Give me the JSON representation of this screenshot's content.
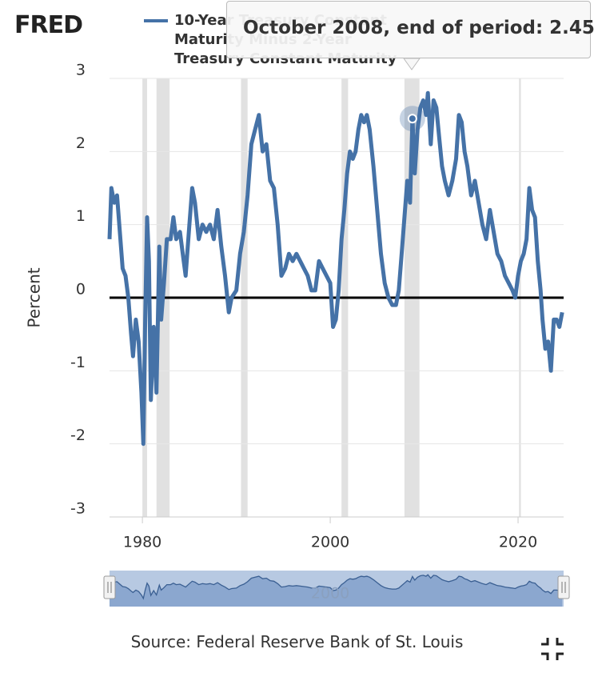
{
  "logo": "FRED",
  "chart_data": {
    "type": "line",
    "series": [
      {
        "name": "10-Year Treasury Constant Maturity Minus 2-Year Treasury Constant Maturity",
        "color": "#4572a7",
        "x": [
          1976.5,
          1976.7,
          1977.0,
          1977.3,
          1977.6,
          1977.9,
          1978.2,
          1978.5,
          1978.8,
          1979.0,
          1979.3,
          1979.6,
          1979.9,
          1980.1,
          1980.3,
          1980.5,
          1980.7,
          1980.9,
          1981.2,
          1981.5,
          1981.8,
          1982.0,
          1982.3,
          1982.6,
          1983.0,
          1983.3,
          1983.6,
          1984.0,
          1984.3,
          1984.6,
          1985.0,
          1985.3,
          1985.6,
          1986.0,
          1986.4,
          1986.8,
          1987.2,
          1987.6,
          1988.0,
          1988.4,
          1988.8,
          1989.2,
          1989.5,
          1990.0,
          1990.4,
          1990.8,
          1991.2,
          1991.6,
          1992.0,
          1992.4,
          1992.8,
          1993.2,
          1993.6,
          1994.0,
          1994.4,
          1994.8,
          1995.2,
          1995.6,
          1996.0,
          1996.4,
          1996.8,
          1997.2,
          1997.6,
          1998.0,
          1998.4,
          1998.8,
          1999.2,
          1999.6,
          2000.0,
          2000.3,
          2000.6,
          2000.9,
          2001.2,
          2001.5,
          2001.8,
          2002.1,
          2002.4,
          2002.7,
          2003.0,
          2003.3,
          2003.6,
          2003.9,
          2004.2,
          2004.6,
          2005.0,
          2005.4,
          2005.8,
          2006.2,
          2006.6,
          2007.0,
          2007.3,
          2007.6,
          2007.9,
          2008.2,
          2008.5,
          2008.75,
          2009.0,
          2009.3,
          2009.6,
          2009.9,
          2010.2,
          2010.4,
          2010.7,
          2011.0,
          2011.3,
          2011.6,
          2011.9,
          2012.2,
          2012.6,
          2013.0,
          2013.4,
          2013.7,
          2014.0,
          2014.3,
          2014.6,
          2015.0,
          2015.4,
          2015.8,
          2016.2,
          2016.6,
          2017.0,
          2017.4,
          2017.8,
          2018.2,
          2018.6,
          2019.0,
          2019.4,
          2019.7,
          2020.0,
          2020.3,
          2020.6,
          2020.9,
          2021.2,
          2021.5,
          2021.8,
          2022.1,
          2022.4,
          2022.6,
          2022.9,
          2023.2,
          2023.5,
          2023.8,
          2024.1,
          2024.4,
          2024.7
        ],
        "values": [
          0.8,
          1.5,
          1.3,
          1.4,
          0.9,
          0.4,
          0.3,
          0,
          -0.5,
          -0.8,
          -0.3,
          -0.6,
          -1.3,
          -2.0,
          -0.3,
          1.1,
          0.5,
          -1.4,
          -0.4,
          -1.3,
          0.7,
          -0.3,
          0.2,
          0.8,
          0.8,
          1.1,
          0.8,
          0.9,
          0.6,
          0.3,
          1.0,
          1.5,
          1.3,
          0.8,
          1.0,
          0.9,
          1.0,
          0.8,
          1.2,
          0.7,
          0.3,
          -0.2,
          0,
          0.1,
          0.6,
          0.9,
          1.4,
          2.1,
          2.3,
          2.5,
          2.0,
          2.1,
          1.6,
          1.5,
          1.0,
          0.3,
          0.4,
          0.6,
          0.5,
          0.6,
          0.5,
          0.4,
          0.3,
          0.1,
          0.1,
          0.5,
          0.4,
          0.3,
          0.2,
          -0.4,
          -0.3,
          0.1,
          0.8,
          1.2,
          1.7,
          2.0,
          1.9,
          2.0,
          2.3,
          2.5,
          2.4,
          2.5,
          2.3,
          1.8,
          1.2,
          0.6,
          0.2,
          0.0,
          -0.1,
          -0.1,
          0.1,
          0.6,
          1.1,
          1.6,
          1.3,
          2.45,
          1.7,
          2.3,
          2.6,
          2.7,
          2.5,
          2.8,
          2.1,
          2.7,
          2.6,
          2.2,
          1.8,
          1.6,
          1.4,
          1.6,
          1.9,
          2.5,
          2.4,
          2.0,
          1.8,
          1.4,
          1.6,
          1.3,
          1.0,
          0.8,
          1.2,
          0.9,
          0.6,
          0.5,
          0.3,
          0.2,
          0.1,
          0.0,
          0.3,
          0.5,
          0.6,
          0.8,
          1.5,
          1.2,
          1.1,
          0.5,
          0.1,
          -0.3,
          -0.7,
          -0.6,
          -1.0,
          -0.3,
          -0.3,
          -0.4,
          -0.2
        ]
      }
    ],
    "recessions": [
      [
        1980.0,
        1980.5
      ],
      [
        1981.5,
        1982.9
      ],
      [
        1990.5,
        1991.2
      ],
      [
        2001.2,
        2001.9
      ],
      [
        2007.9,
        2009.5
      ],
      [
        2020.1,
        2020.3
      ]
    ],
    "xlim": [
      1976.5,
      2024.85
    ],
    "xticks": [
      1980,
      2000,
      2020
    ],
    "ylim": [
      -3,
      3
    ],
    "yticks": [
      -3,
      -2,
      -1,
      0,
      1,
      2,
      3
    ],
    "ylabel": "Percent",
    "grid": true,
    "tooltip": {
      "text": "October 2008, end of period: 2.45",
      "index": 95
    },
    "navigator_label": "2000"
  },
  "source": "Source: Federal Reserve Bank of St. Louis"
}
